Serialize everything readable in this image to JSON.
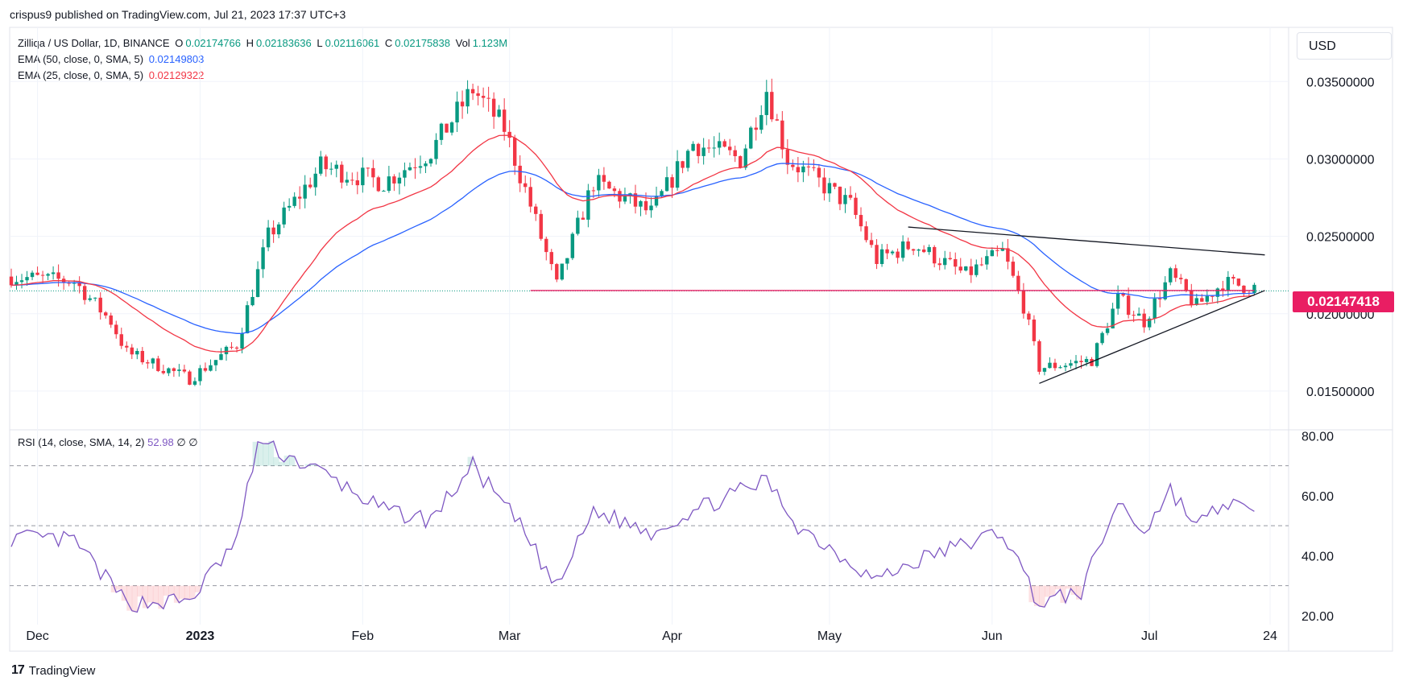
{
  "header": {
    "text": "crispus9 published on TradingView.com, Jul 21, 2023 17:37 UTC+3"
  },
  "legend": {
    "symbol": "Zilliqa / US Dollar, 1D, BINANCE",
    "o_label": "O",
    "o": "0.02174766",
    "h_label": "H",
    "h": "0.02183636",
    "l_label": "L",
    "l": "0.02116061",
    "c_label": "C",
    "c": "0.02175838",
    "vol_label": "Vol",
    "vol": "1.123M",
    "ema50_label": "EMA (50, close, 0, SMA, 5)",
    "ema50": "0.02149803",
    "ema25_label": "EMA (25, close, 0, SMA, 5)",
    "ema25": "0.02129322"
  },
  "rsi_legend": {
    "label": "RSI (14, close, SMA, 14, 2)",
    "value": "52.98",
    "extra1": "∅",
    "extra2": "∅"
  },
  "currency_button": {
    "label": "USD"
  },
  "last_price_tag": "0.02147418",
  "footer": {
    "logo": "17",
    "brand": "TradingView"
  },
  "colors": {
    "up": "#089981",
    "down": "#f23645",
    "ema50": "#2962ff",
    "ema25": "#f23645",
    "rsi": "#7e57c2",
    "hline": "#e91e63",
    "grid": "#f0f3fa",
    "axis_text": "#131722"
  },
  "chart_data": [
    {
      "type": "candlestick",
      "title": "Zilliqa / US Dollar, 1D, BINANCE",
      "x_ticks": [
        "Dec",
        "2023",
        "Feb",
        "Mar",
        "Apr",
        "May",
        "Jun",
        "Jul",
        "24"
      ],
      "y_ticks": [
        "0.03500000",
        "0.03000000",
        "0.02500000",
        "0.02000000",
        "0.01500000"
      ],
      "ylim": [
        0.0125,
        0.0385
      ],
      "last_price": 0.02147418,
      "ohlc_keypoints": [
        {
          "date": "2022-11-26",
          "close": 0.0224
        },
        {
          "date": "2022-12-08",
          "close": 0.0221
        },
        {
          "date": "2022-12-15",
          "close": 0.0195
        },
        {
          "date": "2022-12-18",
          "close": 0.0175
        },
        {
          "date": "2022-12-30",
          "close": 0.0158
        },
        {
          "date": "2023-01-08",
          "close": 0.018
        },
        {
          "date": "2023-01-14",
          "close": 0.025
        },
        {
          "date": "2023-01-24",
          "close": 0.0295
        },
        {
          "date": "2023-02-05",
          "close": 0.0285
        },
        {
          "date": "2023-02-14",
          "close": 0.0305
        },
        {
          "date": "2023-02-22",
          "close": 0.0345
        },
        {
          "date": "2023-02-28",
          "close": 0.032
        },
        {
          "date": "2023-03-05",
          "close": 0.027
        },
        {
          "date": "2023-03-10",
          "close": 0.0218
        },
        {
          "date": "2023-03-17",
          "close": 0.0285
        },
        {
          "date": "2023-03-28",
          "close": 0.0265
        },
        {
          "date": "2023-04-05",
          "close": 0.031
        },
        {
          "date": "2023-04-14",
          "close": 0.03
        },
        {
          "date": "2023-04-19",
          "close": 0.0345
        },
        {
          "date": "2023-04-23",
          "close": 0.03
        },
        {
          "date": "2023-05-05",
          "close": 0.027
        },
        {
          "date": "2023-05-10",
          "close": 0.0235
        },
        {
          "date": "2023-05-17",
          "close": 0.0245
        },
        {
          "date": "2023-05-27",
          "close": 0.0225
        },
        {
          "date": "2023-06-03",
          "close": 0.024
        },
        {
          "date": "2023-06-07",
          "close": 0.0205
        },
        {
          "date": "2023-06-10",
          "close": 0.0165
        },
        {
          "date": "2023-06-20",
          "close": 0.017
        },
        {
          "date": "2023-06-25",
          "close": 0.021
        },
        {
          "date": "2023-06-30",
          "close": 0.0195
        },
        {
          "date": "2023-07-05",
          "close": 0.0225
        },
        {
          "date": "2023-07-10",
          "close": 0.0205
        },
        {
          "date": "2023-07-15",
          "close": 0.022
        },
        {
          "date": "2023-07-21",
          "close": 0.0217
        }
      ],
      "series": [
        {
          "name": "EMA (50, close, 0, SMA, 5)",
          "last": 0.02149803
        },
        {
          "name": "EMA (25, close, 0, SMA, 5)",
          "last": 0.02129322
        }
      ],
      "annotations": [
        {
          "type": "horizontal-line",
          "from": "2023-03-05",
          "to": "2023-07-21",
          "price": 0.0215
        },
        {
          "type": "trendline",
          "from": [
            "2023-05-16",
            0.0256
          ],
          "to": [
            "2023-07-23",
            0.0238
          ]
        },
        {
          "type": "trendline",
          "from": [
            "2023-06-10",
            0.0155
          ],
          "to": [
            "2023-07-23",
            0.0215
          ]
        }
      ]
    },
    {
      "type": "line",
      "title": "RSI (14, close, SMA, 14, 2)",
      "y_ticks": [
        "80.00",
        "60.00",
        "40.00",
        "20.00"
      ],
      "ylim": [
        17,
        82
      ],
      "bands": [
        70,
        50,
        30
      ],
      "last_value": 52.98,
      "keypoints": [
        {
          "date": "2022-11-26",
          "y": 46
        },
        {
          "date": "2022-12-08",
          "y": 45
        },
        {
          "date": "2022-12-18",
          "y": 24
        },
        {
          "date": "2022-12-30",
          "y": 25
        },
        {
          "date": "2023-01-08",
          "y": 45
        },
        {
          "date": "2023-01-12",
          "y": 78
        },
        {
          "date": "2023-01-25",
          "y": 67
        },
        {
          "date": "2023-02-05",
          "y": 55
        },
        {
          "date": "2023-02-14",
          "y": 52
        },
        {
          "date": "2023-02-22",
          "y": 70
        },
        {
          "date": "2023-03-03",
          "y": 50
        },
        {
          "date": "2023-03-10",
          "y": 29
        },
        {
          "date": "2023-03-17",
          "y": 55
        },
        {
          "date": "2023-03-28",
          "y": 48
        },
        {
          "date": "2023-04-05",
          "y": 55
        },
        {
          "date": "2023-04-19",
          "y": 65
        },
        {
          "date": "2023-04-25",
          "y": 50
        },
        {
          "date": "2023-05-10",
          "y": 32
        },
        {
          "date": "2023-05-20",
          "y": 40
        },
        {
          "date": "2023-06-03",
          "y": 48
        },
        {
          "date": "2023-06-10",
          "y": 24
        },
        {
          "date": "2023-06-18",
          "y": 28
        },
        {
          "date": "2023-06-25",
          "y": 58
        },
        {
          "date": "2023-06-30",
          "y": 48
        },
        {
          "date": "2023-07-05",
          "y": 62
        },
        {
          "date": "2023-07-10",
          "y": 50
        },
        {
          "date": "2023-07-16",
          "y": 58
        },
        {
          "date": "2023-07-21",
          "y": 53
        }
      ]
    }
  ]
}
